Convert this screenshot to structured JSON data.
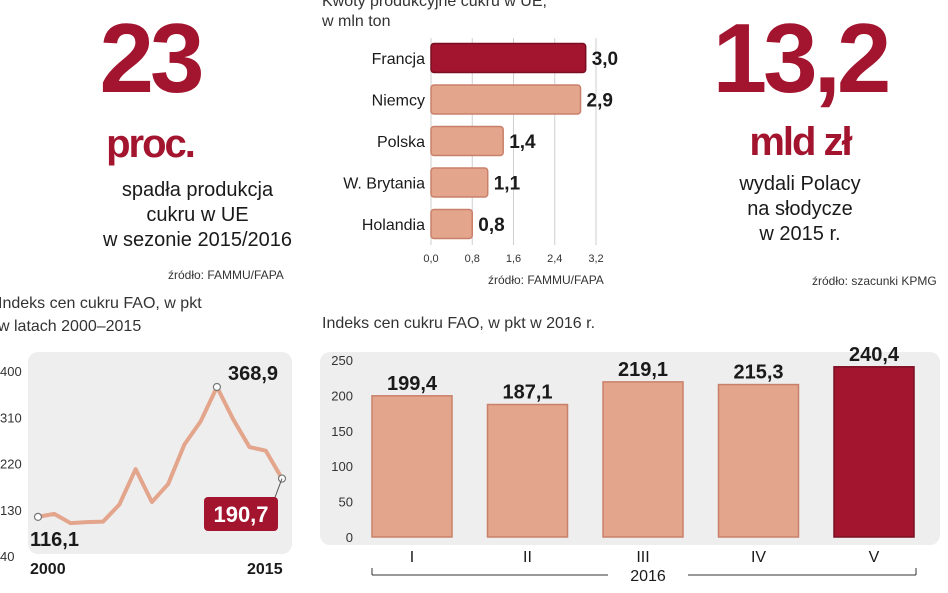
{
  "stat_left": {
    "number": "23",
    "unit": "proc.",
    "caption": [
      "spadła produkcja",
      "cukru w UE",
      "w sezonie 2015/2016"
    ],
    "source": "źródło: FAMMU/FAPA"
  },
  "stat_right": {
    "number": "13,2",
    "unit": "mld zł",
    "caption": [
      "wydali Polacy",
      "na słodycze",
      "w 2015 r."
    ],
    "source": "źródło: szacunki KPMG"
  },
  "colors": {
    "accent": "#a3142f",
    "bar": "#e3a58c",
    "bar_stroke": "#c9806a",
    "panel": "#eeeeee"
  },
  "chart_data": [
    {
      "type": "bar",
      "orientation": "horizontal",
      "title": [
        "Kwoty produkcyjne cukru w UE,",
        "w mln ton"
      ],
      "categories": [
        "Francja",
        "Niemcy",
        "Polska",
        "W. Brytania",
        "Holandia"
      ],
      "values": [
        3.0,
        2.9,
        1.4,
        1.1,
        0.8
      ],
      "value_labels": [
        "3,0",
        "2,9",
        "1,4",
        "1,1",
        "0,8"
      ],
      "highlight_index": 0,
      "xlim": [
        0,
        3.2
      ],
      "xticks": [
        "0,0",
        "0,8",
        "1,6",
        "2,4",
        "3,2"
      ],
      "source": "źródło: FAMMU/FAPA"
    },
    {
      "type": "line",
      "title": [
        "Indeks cen cukru FAO, w pkt",
        "w latach 2000–2015"
      ],
      "x": [
        2000,
        2001,
        2002,
        2003,
        2004,
        2005,
        2006,
        2007,
        2008,
        2009,
        2010,
        2011,
        2012,
        2013,
        2014,
        2015
      ],
      "values": [
        116.1,
        122,
        104,
        106,
        107,
        140,
        209,
        145,
        180,
        257,
        302,
        368.9,
        306,
        252,
        245,
        190.7
      ],
      "ylim": [
        40,
        400
      ],
      "yticks": [
        "40",
        "130",
        "220",
        "310",
        "400"
      ],
      "xlabels": [
        "2000",
        "2015"
      ],
      "start_label": "116,1",
      "max_label": "368,9",
      "end_label": "190,7"
    },
    {
      "type": "bar",
      "title": "Indeks cen cukru FAO, w pkt w 2016 r.",
      "categories": [
        "I",
        "II",
        "III",
        "IV",
        "V"
      ],
      "values": [
        199.4,
        187.1,
        219.1,
        215.3,
        240.4
      ],
      "value_labels": [
        "199,4",
        "187,1",
        "219,1",
        "215,3",
        "240,4"
      ],
      "highlight_index": 4,
      "ylim": [
        0,
        250
      ],
      "yticks": [
        "0",
        "50",
        "100",
        "150",
        "200",
        "250"
      ],
      "xlabel": "2016"
    }
  ]
}
